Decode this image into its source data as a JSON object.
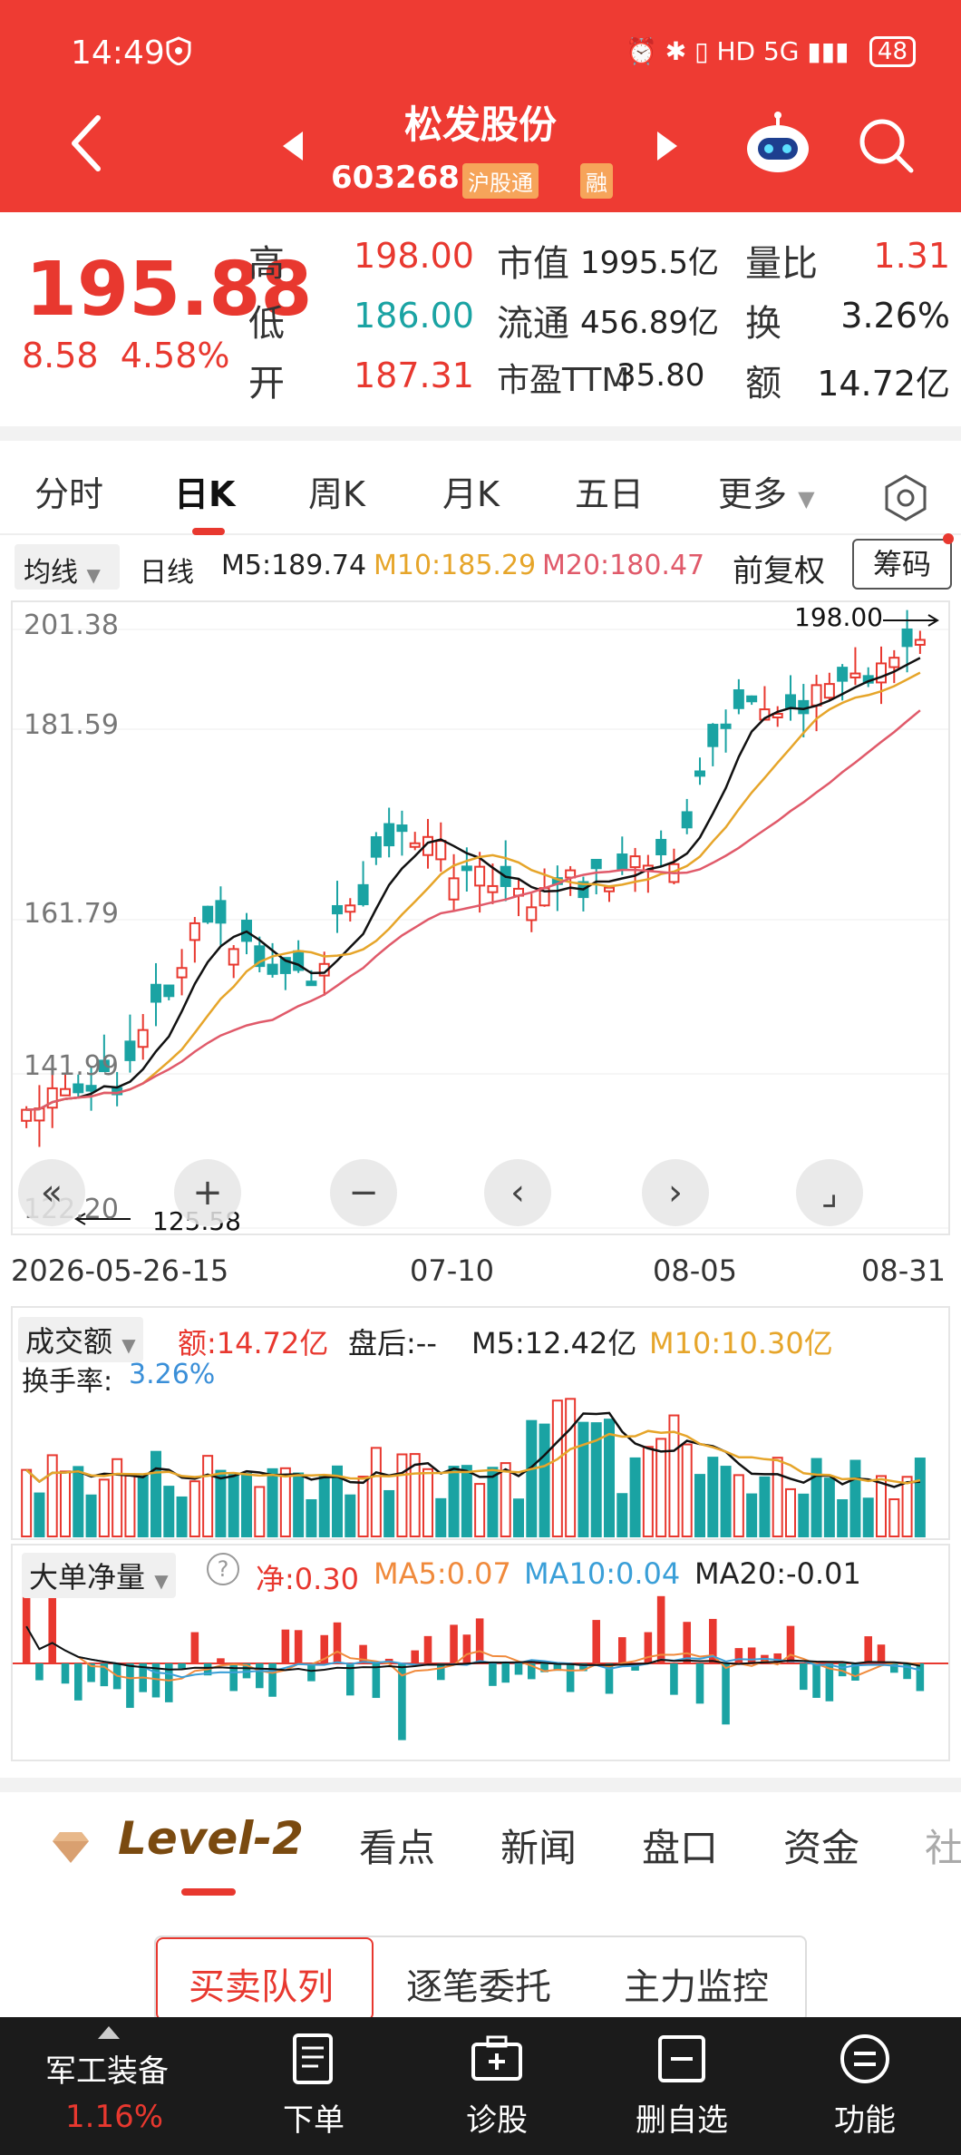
{
  "status_bar": {
    "time": "14:49",
    "network": "HD 5G",
    "battery": "48"
  },
  "header": {
    "stock_name": "松发股份",
    "stock_code": "603268",
    "tag_hgt": "沪股通",
    "tag_rong": "融"
  },
  "quote": {
    "price": "195.88",
    "change_amount": "8.58",
    "change_pct": "4.58%",
    "high_label": "高",
    "high": "198.00",
    "low_label": "低",
    "low": "186.00",
    "open_label": "开",
    "open": "187.31",
    "mktcap_label": "市值",
    "mktcap": "1995.5亿",
    "float_label": "流通",
    "float": "456.89亿",
    "pe_label": "市盈TTM",
    "pe": "35.80",
    "vol_ratio_label": "量比",
    "vol_ratio": "1.31",
    "turnover_label": "换",
    "turnover": "3.26%",
    "amount_label": "额",
    "amount": "14.72亿"
  },
  "tabs": [
    "分时",
    "日K",
    "周K",
    "月K",
    "五日",
    "更多"
  ],
  "indicator": {
    "junxian": "均线",
    "rixian": "日线",
    "m5": "M5:189.74",
    "m10": "M10:185.29",
    "m20": "M20:180.47",
    "fuquan": "前复权",
    "chouma": "筹码"
  },
  "kline": {
    "y_labels": [
      "201.38",
      "181.59",
      "161.79",
      "141.99",
      "122.20"
    ],
    "high_marker": "198.00",
    "low_marker": "125.58",
    "dates": [
      "2026-05-26",
      "-15",
      "07-10",
      "08-05",
      "08-31"
    ],
    "controls": [
      "«",
      "+",
      "−",
      "‹",
      "›",
      "⌟"
    ]
  },
  "volume": {
    "label": "成交额",
    "amount": "额:14.72亿",
    "after_hours": "盘后:--",
    "m5": "M5:12.42亿",
    "m10": "M10:10.30亿",
    "turnover_label": "换手率:",
    "turnover": "3.26%"
  },
  "big_order": {
    "label": "大单净量",
    "net": "净:0.30",
    "ma5": "MA5:0.07",
    "ma10": "MA10:0.04",
    "ma20": "MA20:-0.01"
  },
  "info_tabs": {
    "level2": "Level-2",
    "items": [
      "看点",
      "新闻",
      "盘口",
      "资金",
      "社"
    ]
  },
  "queue_tabs": [
    "买卖队列",
    "逐笔委托",
    "主力监控"
  ],
  "bottom_bar": {
    "sector_name": "军工装备",
    "sector_pct": "1.16%",
    "items": [
      "下单",
      "诊股",
      "删自选",
      "功能"
    ]
  },
  "colors": {
    "up": "#e8382f",
    "down": "#1aa3a3",
    "header": "#ee3b33",
    "ma5": "#111111",
    "ma10": "#e6a52a",
    "ma20": "#e05a6a"
  }
}
